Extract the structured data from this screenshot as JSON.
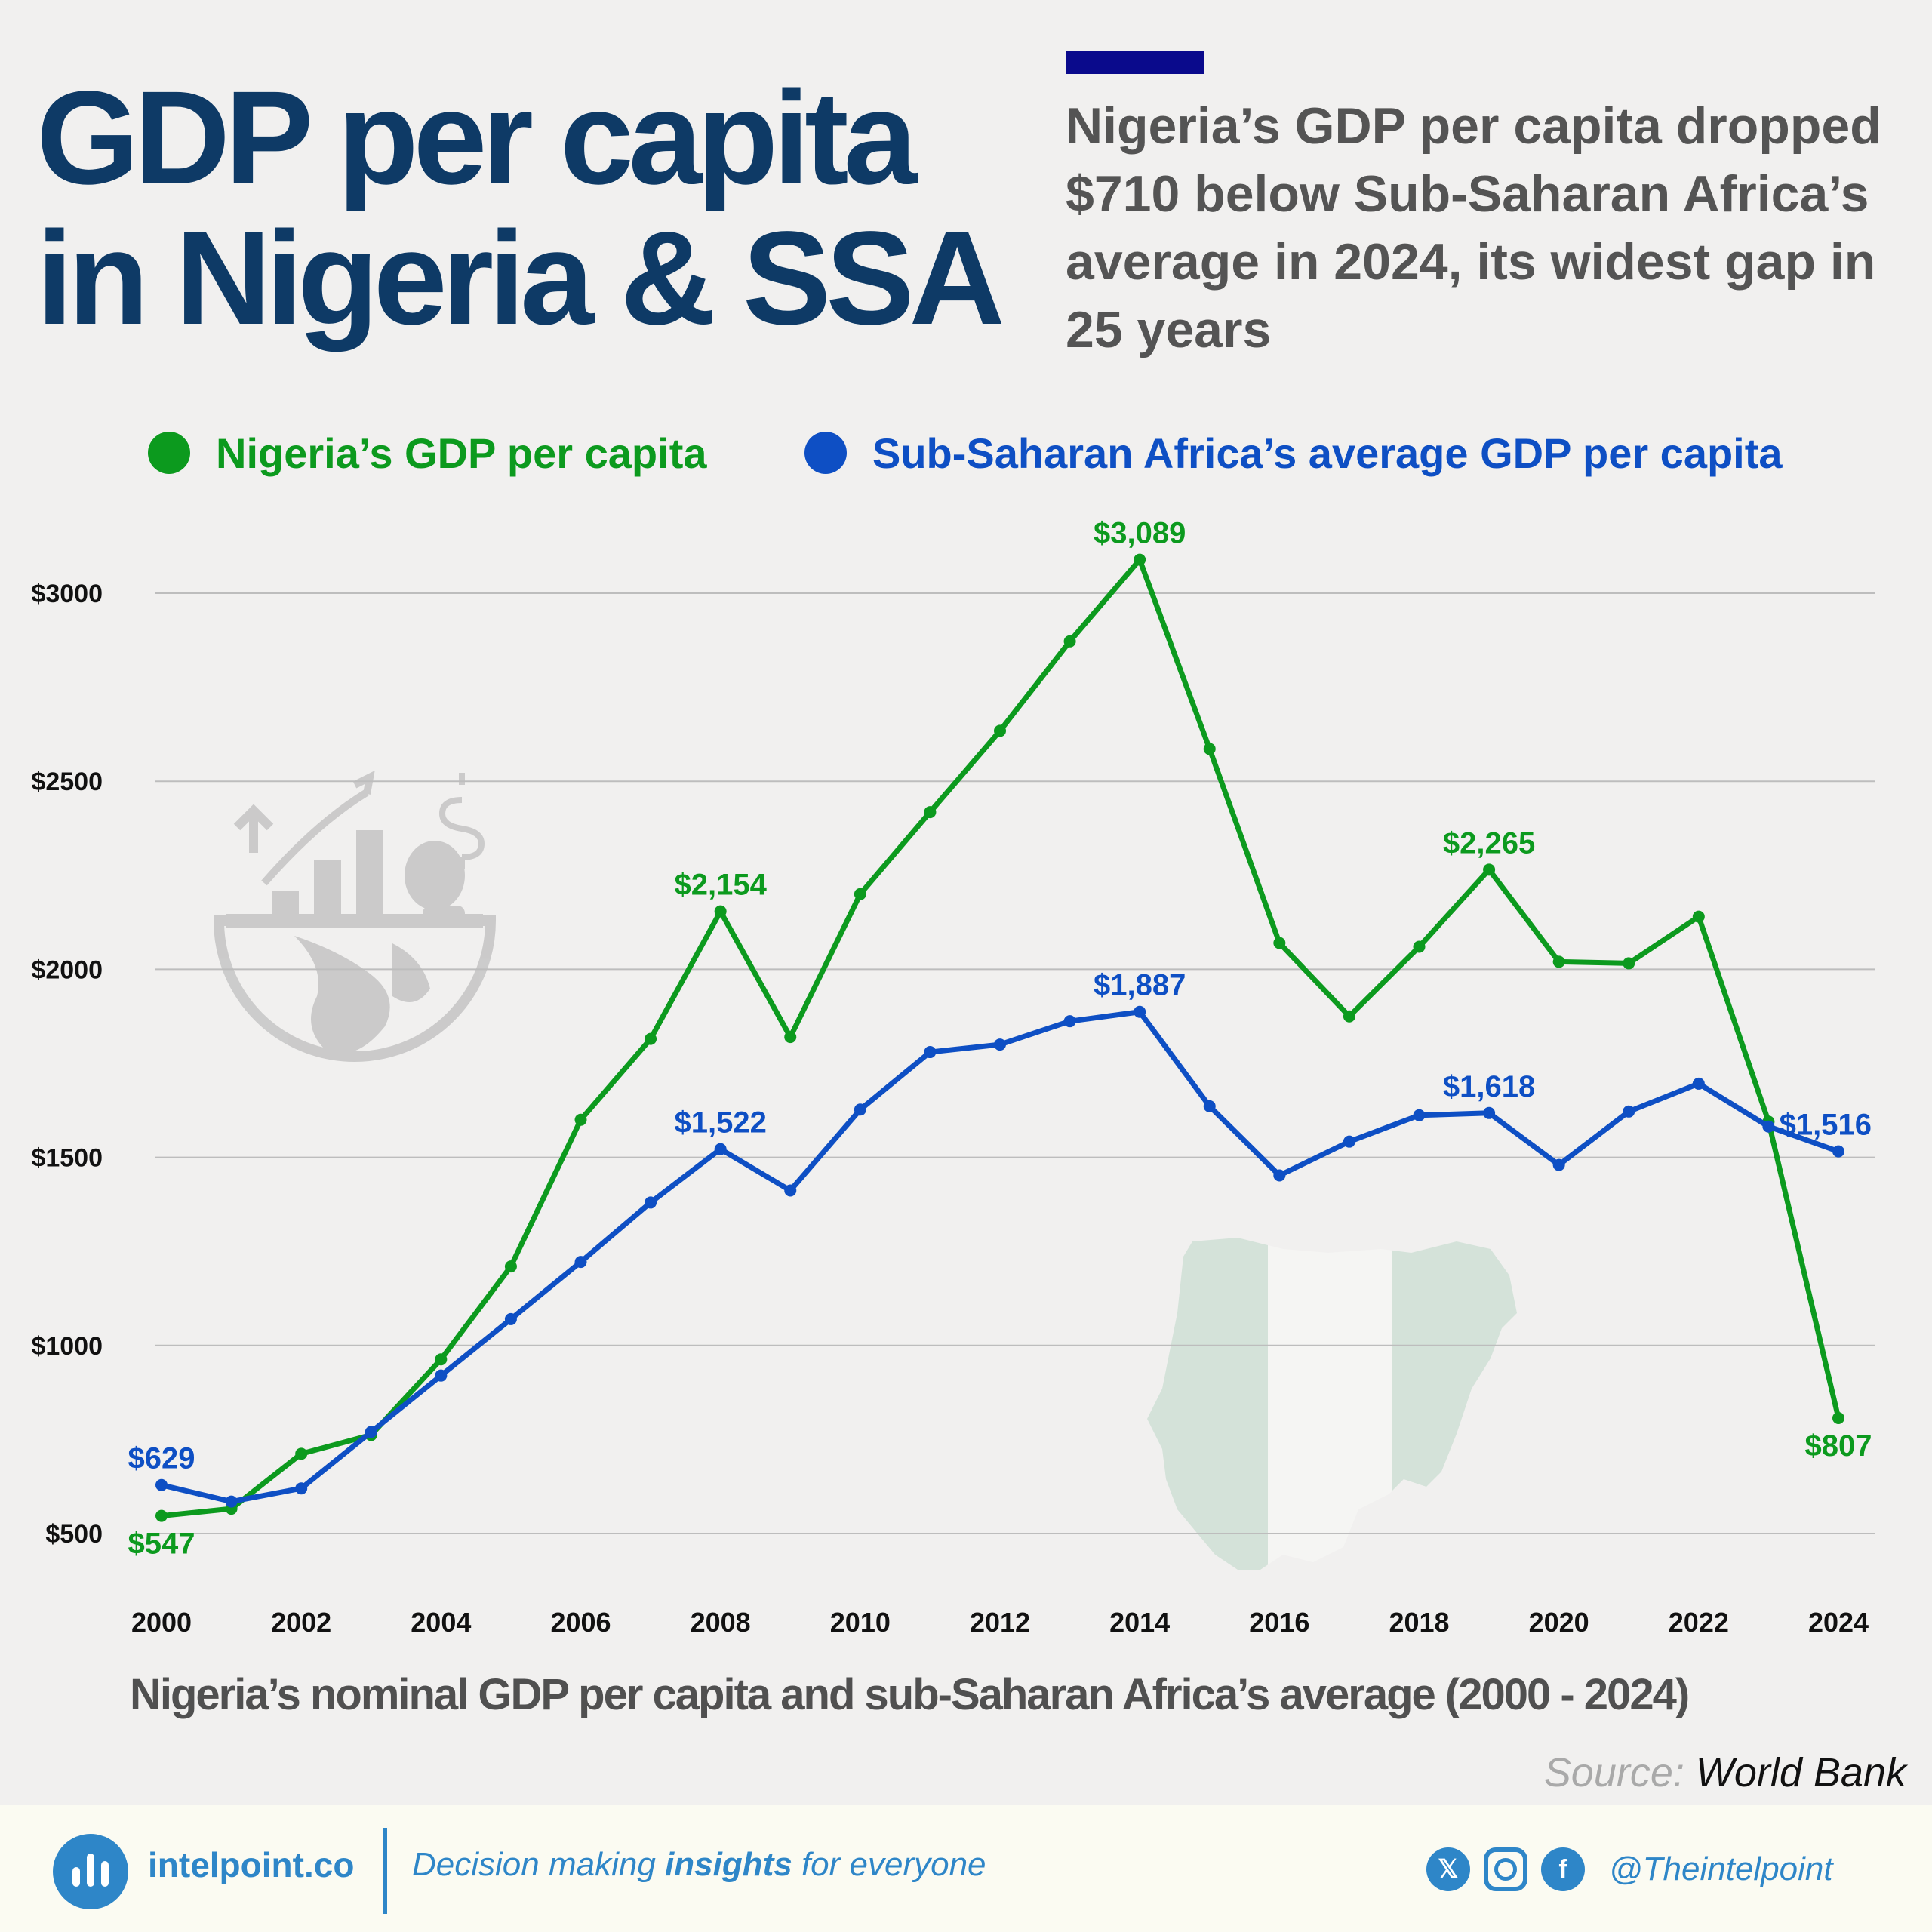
{
  "title": "GDP per capita in Nigeria & SSA",
  "subtitle": "Nigeria’s GDP per capita dropped $710 below Sub-Saharan Africa’s average in 2024, its widest gap in 25 years",
  "colors": {
    "nigeria": "#0c9a1e",
    "ssa": "#0e4fc4",
    "title": "#0e3a66",
    "accent_bar": "#0a0a8c",
    "brand": "#2e86c8"
  },
  "legend": [
    {
      "label": "Nigeria’s GDP per capita",
      "color": "#0c9a1e"
    },
    {
      "label": "Sub-Saharan Africa’s average GDP per capita",
      "color": "#0e4fc4"
    }
  ],
  "chart_data": {
    "type": "line",
    "title": "",
    "xlabel": "",
    "ylabel": "",
    "x": [
      2000,
      2001,
      2002,
      2003,
      2004,
      2005,
      2006,
      2007,
      2008,
      2009,
      2010,
      2011,
      2012,
      2013,
      2014,
      2015,
      2016,
      2017,
      2018,
      2019,
      2020,
      2021,
      2022,
      2023,
      2024
    ],
    "series": [
      {
        "name": "Nigeria’s GDP per capita",
        "color": "#0c9a1e",
        "values": [
          547,
          566,
          712,
          762,
          963,
          1210,
          1600,
          1815,
          2154,
          1820,
          2200,
          2418,
          2634,
          2872,
          3089,
          2586,
          2070,
          1875,
          2060,
          2265,
          2020,
          2016,
          2140,
          1595,
          807
        ]
      },
      {
        "name": "Sub-Saharan Africa’s average GDP per capita",
        "color": "#0e4fc4",
        "values": [
          629,
          585,
          620,
          770,
          920,
          1070,
          1222,
          1380,
          1522,
          1412,
          1627,
          1780,
          1800,
          1862,
          1887,
          1636,
          1452,
          1542,
          1612,
          1618,
          1480,
          1622,
          1696,
          1582,
          1516
        ]
      }
    ],
    "annotations": [
      {
        "series": 0,
        "x": 2000,
        "text": "$547",
        "pos": "below"
      },
      {
        "series": 0,
        "x": 2008,
        "text": "$2,154",
        "pos": "above"
      },
      {
        "series": 0,
        "x": 2014,
        "text": "$3,089",
        "pos": "above"
      },
      {
        "series": 0,
        "x": 2019,
        "text": "$2,265",
        "pos": "above"
      },
      {
        "series": 0,
        "x": 2024,
        "text": "$807",
        "pos": "below"
      },
      {
        "series": 1,
        "x": 2000,
        "text": "$629",
        "pos": "above"
      },
      {
        "series": 1,
        "x": 2008,
        "text": "$1,522",
        "pos": "above"
      },
      {
        "series": 1,
        "x": 2014,
        "text": "$1,887",
        "pos": "above"
      },
      {
        "series": 1,
        "x": 2019,
        "text": "$1,618",
        "pos": "above"
      },
      {
        "series": 1,
        "x": 2024,
        "text": "$1,516",
        "pos": "above"
      }
    ],
    "xticks": [
      "2000",
      "2002",
      "2004",
      "2006",
      "2008",
      "2010",
      "2012",
      "2014",
      "2016",
      "2018",
      "2020",
      "2022",
      "2024"
    ],
    "yticks": [
      {
        "value": 500,
        "label": "$500"
      },
      {
        "value": 1000,
        "label": "$1000"
      },
      {
        "value": 1500,
        "label": "$1500"
      },
      {
        "value": 2000,
        "label": "$2000"
      },
      {
        "value": 2500,
        "label": "$2500"
      },
      {
        "value": 3000,
        "label": "$3000"
      }
    ],
    "xlim": [
      2000,
      2024
    ],
    "ylim": [
      500,
      3000
    ],
    "grid": true,
    "legend_position": "top"
  },
  "caption": "Nigeria’s nominal GDP per capita and sub-Saharan Africa’s average (2000 - 2024)",
  "source": {
    "label": "Source:",
    "name": "World Bank"
  },
  "footer": {
    "brand": "intelpoint.co",
    "tagline_pre": "Decision making ",
    "tagline_bold": "insights",
    "tagline_post": " for everyone",
    "social_icons": [
      "x-icon",
      "instagram-icon",
      "facebook-icon"
    ],
    "handle": "@Theintelpoint"
  }
}
